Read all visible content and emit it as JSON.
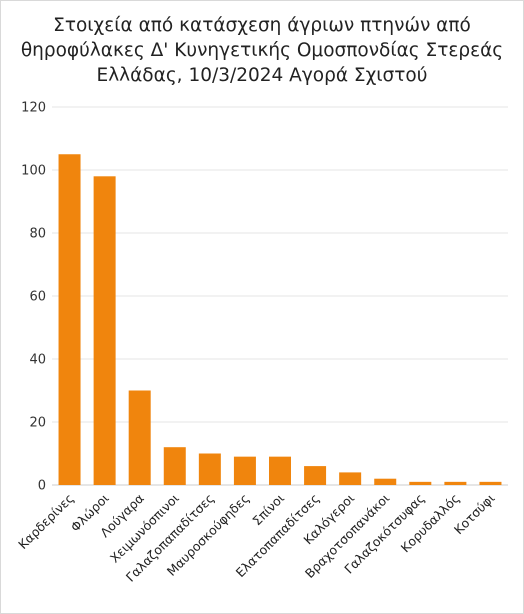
{
  "chart_data": {
    "type": "bar",
    "title_lines": [
      "Στοιχεία από κατάσχεση άγριων πτηνών από",
      "θηροφύλακες Δ' Κυνηγετικής Ομοσπονδίας Στερεάς",
      "Ελλάδας, 10/3/2024 Αγορά Σχιστού"
    ],
    "xlabel": "",
    "ylabel": "",
    "categories": [
      "Καρδερίνες",
      "Φλώροι",
      "Λούγαρα",
      "Χειμωνόσπινοι",
      "Γαλαζοπαπαδίτσες",
      "Μαυροσκούφηδες",
      "Σπίνοι",
      "Ελατοπαπαδίτσες",
      "Καλόγεροι",
      "Βραχοτσοπανάκοι",
      "Γαλαζοκότσυφας",
      "Κορυδαλλός",
      "Κοτσύφι"
    ],
    "values": [
      105,
      98,
      30,
      12,
      10,
      9,
      9,
      6,
      4,
      2,
      1,
      1,
      1
    ],
    "ylim": [
      0,
      120
    ],
    "yticks": [
      0,
      20,
      40,
      60,
      80,
      100,
      120
    ],
    "grid": true,
    "bar_color": "#f0850d",
    "grid_color": "#e6e6e6"
  }
}
